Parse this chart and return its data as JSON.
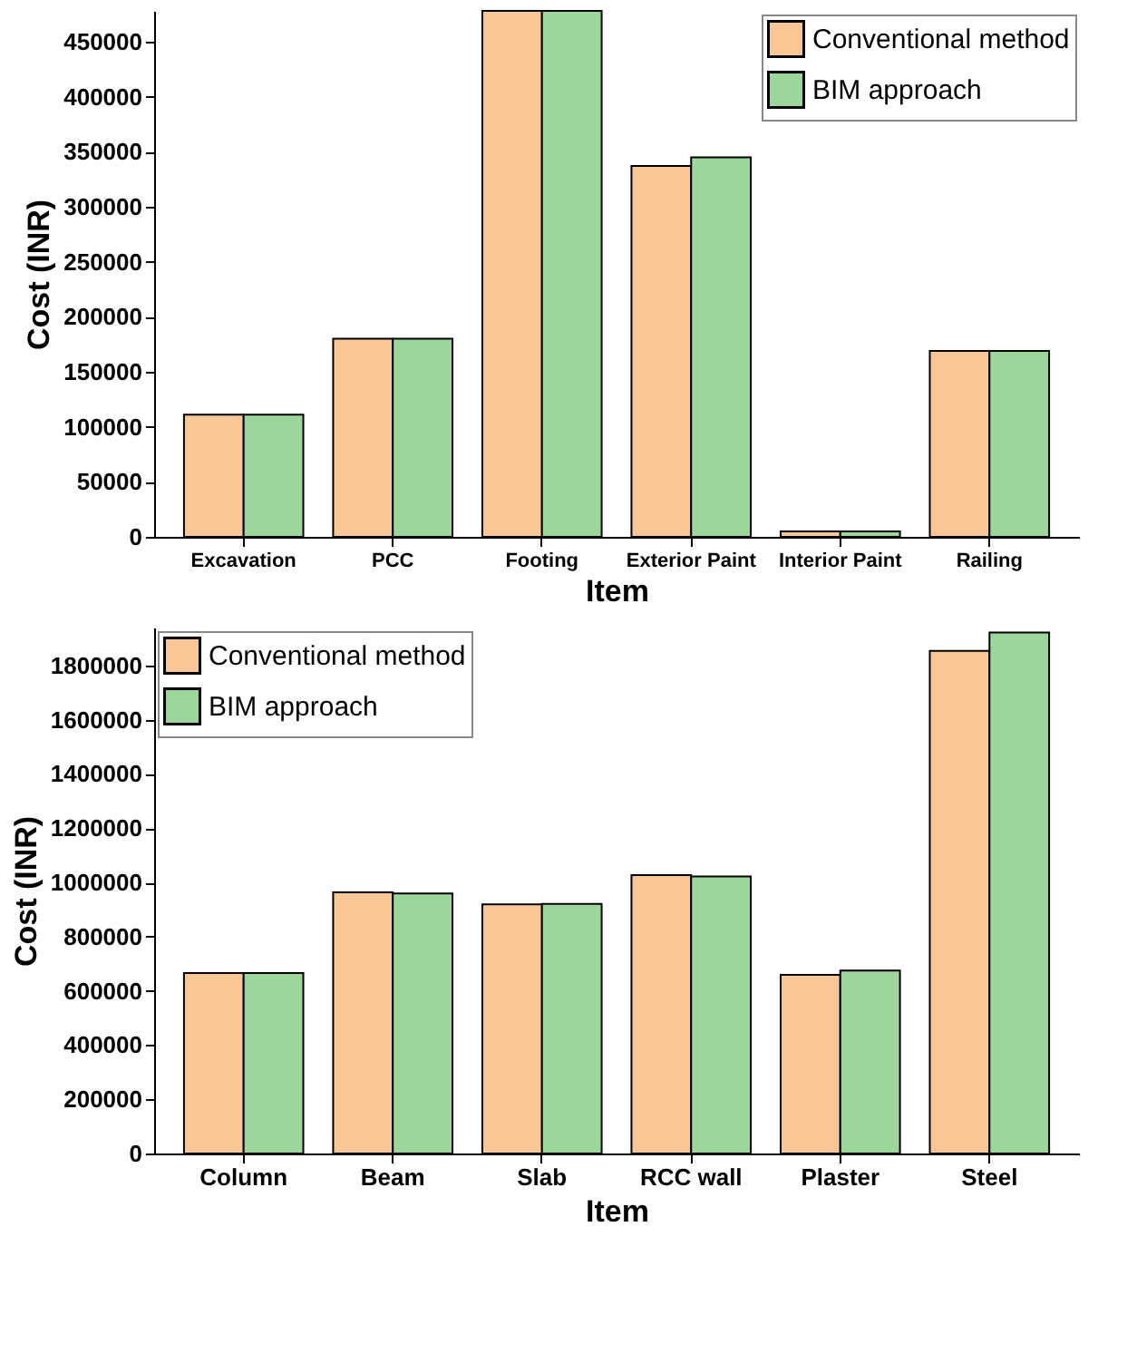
{
  "chart_data": [
    {
      "type": "bar",
      "xlabel": "Item",
      "ylabel": "Cost (INR)",
      "categories": [
        "Excavation",
        "PCC",
        "Footing",
        "Exterior Paint",
        "Interior Paint",
        "Railing"
      ],
      "series": [
        {
          "name": "Conventional method",
          "color": "#f9c795",
          "values": [
            111000,
            180000,
            478000,
            337000,
            5000,
            169000
          ]
        },
        {
          "name": "BIM approach",
          "color": "#9dd69b",
          "values": [
            111000,
            180000,
            478000,
            345000,
            5000,
            169000
          ]
        }
      ],
      "ylim": [
        0,
        478000
      ],
      "yticks": [
        0,
        50000,
        100000,
        150000,
        200000,
        250000,
        300000,
        350000,
        400000,
        450000
      ],
      "grid": false,
      "legend": "top right"
    },
    {
      "type": "bar",
      "xlabel": "Item",
      "ylabel": "Cost (INR)",
      "categories": [
        "Column",
        "Beam",
        "Slab",
        "RCC wall",
        "Plaster",
        "Steel"
      ],
      "series": [
        {
          "name": "Conventional method",
          "color": "#f9c795",
          "values": [
            666000,
            963000,
            919000,
            1027000,
            659000,
            1854000
          ]
        },
        {
          "name": "BIM approach",
          "color": "#9dd69b",
          "values": [
            666000,
            959000,
            921000,
            1022000,
            675000,
            1922000
          ]
        }
      ],
      "ylim": [
        0,
        1940000
      ],
      "yticks": [
        0,
        200000,
        400000,
        600000,
        800000,
        1000000,
        1200000,
        1400000,
        1600000,
        1800000
      ],
      "grid": false,
      "legend": "top left"
    }
  ]
}
